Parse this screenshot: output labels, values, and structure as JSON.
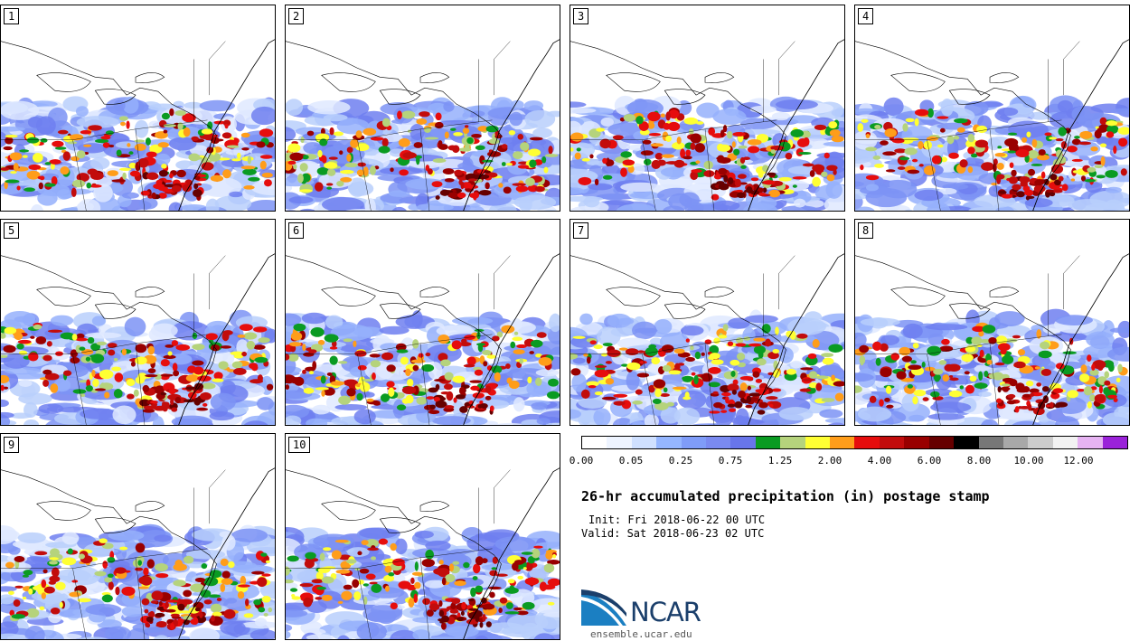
{
  "panels": [
    {
      "label": "1"
    },
    {
      "label": "2"
    },
    {
      "label": "3"
    },
    {
      "label": "4"
    },
    {
      "label": "5"
    },
    {
      "label": "6"
    },
    {
      "label": "7"
    },
    {
      "label": "8"
    },
    {
      "label": "9"
    },
    {
      "label": "10"
    }
  ],
  "colorbar": {
    "colors": [
      "#ffffff",
      "#eef4ff",
      "#cfe0ff",
      "#95b6ff",
      "#7f9cf8",
      "#7a8af0",
      "#6875ea",
      "#0a9b22",
      "#b5d37c",
      "#ffff33",
      "#ff9d1a",
      "#e60d0d",
      "#c20c0c",
      "#990000",
      "#660000",
      "#000000",
      "#777777",
      "#a8a8a8",
      "#cccccc",
      "#f2f2f2",
      "#e6b3f2",
      "#9a22d9"
    ],
    "tick_labels": [
      "0.00",
      "0.05",
      "0.25",
      "0.75",
      "1.25",
      "2.00",
      "4.00",
      "6.00",
      "8.00",
      "10.00",
      "12.00"
    ]
  },
  "title": "26-hr accumulated precipitation (in) postage stamp",
  "init": "Init: Fri 2018-06-22 00 UTC",
  "valid": "Valid: Sat 2018-06-23 02 UTC",
  "logo": {
    "text": "NCAR",
    "colors": {
      "blue": "#1b7fc2",
      "navy": "#1b3f6b"
    }
  },
  "site": "ensemble.ucar.edu"
}
